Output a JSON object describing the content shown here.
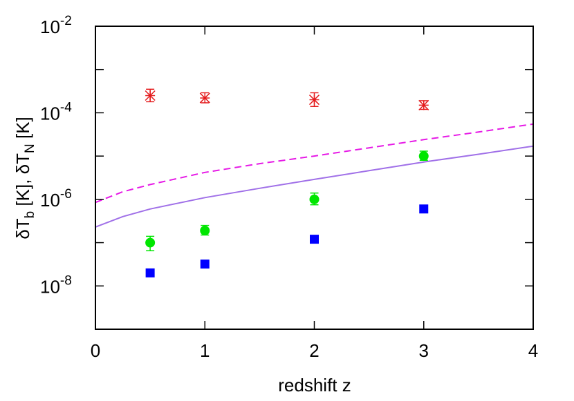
{
  "chart_data": {
    "type": "scatter",
    "title": "",
    "xlabel": "redshift z",
    "ylabel": {
      "delta1": "δ",
      "t1": "T",
      "sub1": "b",
      "unit1": " [K], ",
      "delta2": "δ",
      "t2": "T",
      "sub2": "N",
      "unit2": " [K]"
    },
    "xlim": [
      0,
      4
    ],
    "ylim": [
      1e-09,
      0.01
    ],
    "yscale": "log",
    "x_ticks": [
      "0",
      "1",
      "2",
      "3",
      "4"
    ],
    "y_ticks": [
      {
        "base": "10",
        "exp": "-8",
        "value": 1e-08
      },
      {
        "base": "10",
        "exp": "-6",
        "value": 1e-06
      },
      {
        "base": "10",
        "exp": "-4",
        "value": 0.0001
      },
      {
        "base": "10",
        "exp": "-2",
        "value": 0.01
      }
    ],
    "grid": false,
    "series": [
      {
        "marker": "star",
        "color": "#e41a1c",
        "points": [
          {
            "x": 0.5,
            "y": 0.00025,
            "ylo": 0.00018,
            "yhi": 0.00035
          },
          {
            "x": 1.0,
            "y": 0.00022,
            "ylo": 0.00017,
            "yhi": 0.00029
          },
          {
            "x": 2.0,
            "y": 0.0002,
            "ylo": 0.00014,
            "yhi": 0.00029
          },
          {
            "x": 3.0,
            "y": 0.00015,
            "ylo": 0.00012,
            "yhi": 0.00019
          }
        ]
      },
      {
        "marker": "circle",
        "color": "#00e600",
        "points": [
          {
            "x": 0.5,
            "y": 1e-07,
            "ylo": 6.5e-08,
            "yhi": 1.4e-07
          },
          {
            "x": 1.0,
            "y": 1.9e-07,
            "ylo": 1.5e-07,
            "yhi": 2.5e-07
          },
          {
            "x": 2.0,
            "y": 1e-06,
            "ylo": 7.5e-07,
            "yhi": 1.4e-06
          },
          {
            "x": 3.0,
            "y": 1e-05,
            "ylo": 8e-06,
            "yhi": 1.3e-05
          }
        ]
      },
      {
        "marker": "square",
        "color": "#0000ff",
        "points": [
          {
            "x": 0.5,
            "y": 2e-08
          },
          {
            "x": 1.0,
            "y": 3.2e-08
          },
          {
            "x": 2.0,
            "y": 1.2e-07
          },
          {
            "x": 3.0,
            "y": 6e-07
          }
        ]
      }
    ],
    "curves": [
      {
        "style": "dashed",
        "color": "#e619e6",
        "x": [
          0,
          0.25,
          0.5,
          1.0,
          1.5,
          2.0,
          2.5,
          3.0,
          3.5,
          4.0
        ],
        "y": [
          8.5e-07,
          1.5e-06,
          2.2e-06,
          4.2e-06,
          6.7e-06,
          1e-05,
          1.55e-05,
          2.4e-05,
          3.6e-05,
          5.5e-05
        ]
      },
      {
        "style": "solid",
        "color": "#a070e8",
        "x": [
          0,
          0.25,
          0.5,
          1.0,
          1.5,
          2.0,
          2.5,
          3.0,
          3.5,
          4.0
        ],
        "y": [
          2.3e-07,
          4e-07,
          6e-07,
          1.1e-06,
          1.8e-06,
          2.9e-06,
          4.6e-06,
          7.3e-06,
          1.1e-05,
          1.7e-05
        ]
      }
    ]
  }
}
